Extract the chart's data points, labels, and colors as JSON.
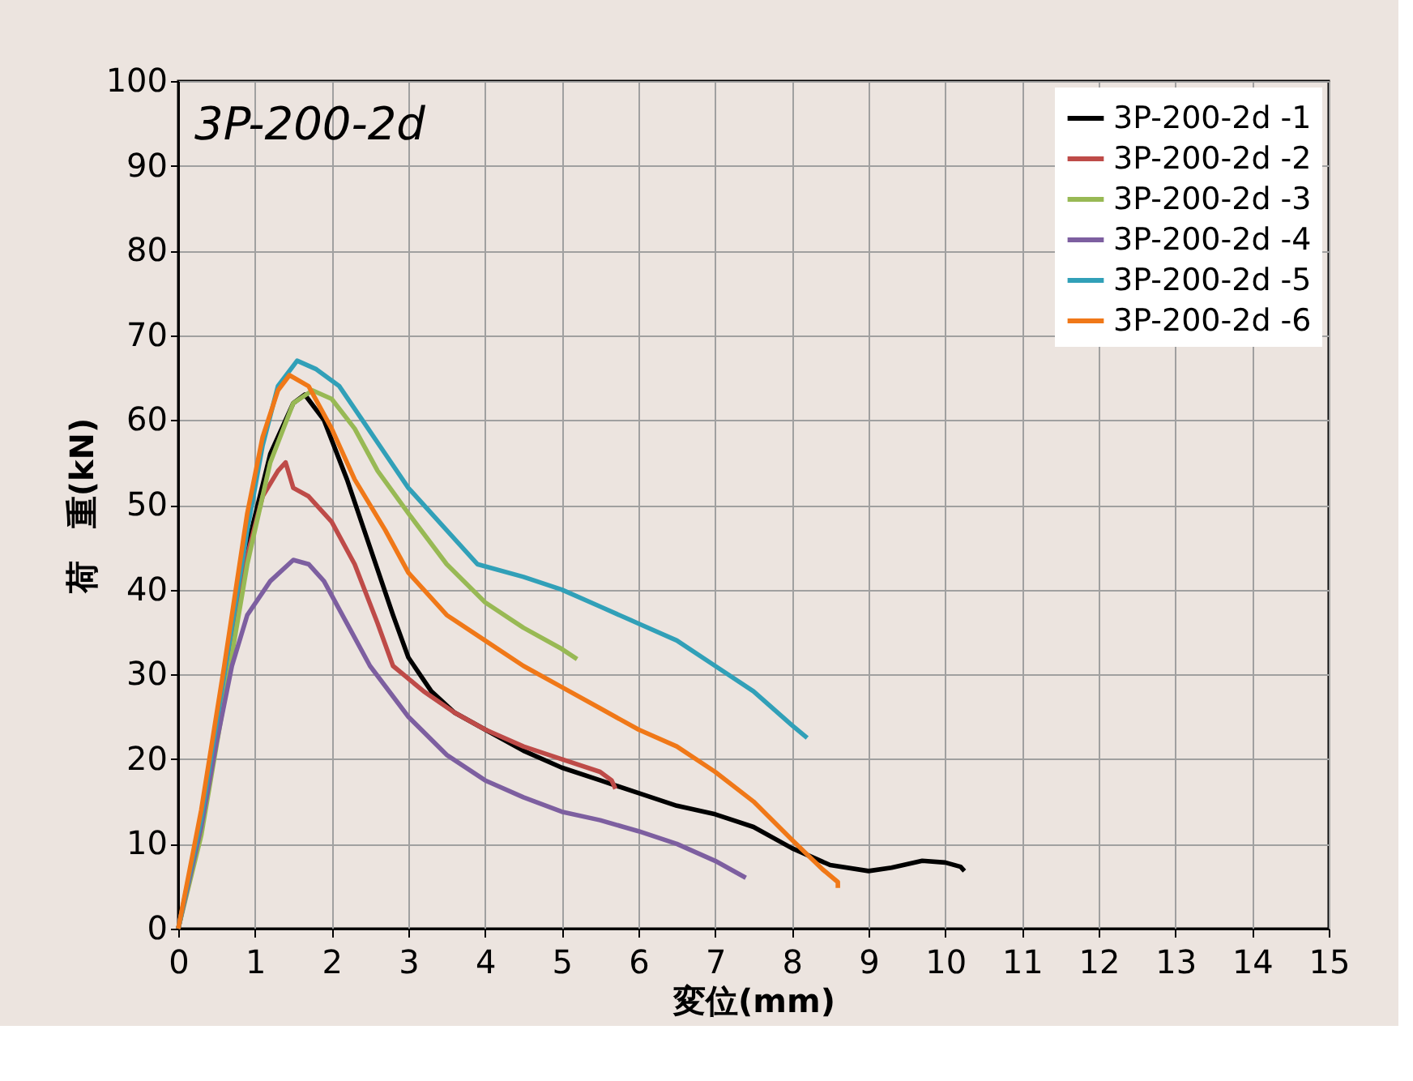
{
  "chart_data": {
    "type": "line",
    "xlabel": "変位(mm)",
    "ylabel": "荷　重(kN)",
    "annotations": [
      "3P-200-2d"
    ],
    "xlim": [
      0,
      15
    ],
    "xticks": [
      0,
      1,
      2,
      3,
      4,
      5,
      6,
      7,
      8,
      9,
      10,
      11,
      12,
      13,
      14,
      15
    ],
    "ylim": [
      0,
      100
    ],
    "yticks": [
      0,
      10,
      20,
      30,
      40,
      50,
      60,
      70,
      80,
      90,
      100
    ],
    "grid": true,
    "legend": "top right",
    "marker": "none",
    "line_style": "solid",
    "series": [
      {
        "name": "3P-200-2d -1",
        "color": "#000000",
        "x": [
          0,
          0.3,
          0.6,
          0.9,
          1.2,
          1.5,
          1.65,
          1.9,
          2.2,
          2.5,
          2.8,
          3.0,
          3.3,
          3.6,
          4,
          4.5,
          5,
          5.5,
          6,
          6.5,
          7,
          7.5,
          8,
          8.5,
          9,
          9.3,
          9.7,
          10,
          10.2,
          10.25
        ],
        "values": [
          0,
          12,
          28,
          45,
          56,
          62,
          63,
          60,
          53,
          45,
          37,
          32,
          28,
          25.5,
          23.5,
          21,
          19,
          17.5,
          16,
          14.5,
          13.5,
          12,
          9.5,
          7.5,
          6.8,
          7.2,
          8,
          7.8,
          7.3,
          6.8
        ]
      },
      {
        "name": "3P-200-2d -2",
        "color": "#be4b48",
        "x": [
          0,
          0.3,
          0.6,
          0.9,
          1.1,
          1.3,
          1.4,
          1.5,
          1.7,
          2,
          2.3,
          2.6,
          2.8,
          3.2,
          3.6,
          4,
          4.5,
          5,
          5.5,
          5.65,
          5.7
        ],
        "values": [
          0,
          13,
          30,
          44,
          51,
          54,
          55,
          52,
          51,
          48,
          43,
          36,
          31,
          28,
          25.5,
          23.5,
          21.5,
          20,
          18.5,
          17.5,
          16.5
        ]
      },
      {
        "name": "3P-200-2d -3",
        "color": "#98b954",
        "x": [
          0,
          0.3,
          0.6,
          0.9,
          1.2,
          1.5,
          1.75,
          2,
          2.3,
          2.6,
          3,
          3.5,
          4,
          4.5,
          5,
          5.2
        ],
        "values": [
          0,
          11,
          27,
          43,
          55,
          62,
          63.5,
          62.5,
          59,
          54,
          49,
          43,
          38.5,
          35.5,
          33,
          31.8
        ]
      },
      {
        "name": "3P-200-2d -4",
        "color": "#7d5fa0",
        "x": [
          0,
          0.3,
          0.5,
          0.7,
          0.9,
          1.2,
          1.5,
          1.7,
          1.9,
          2.2,
          2.5,
          3,
          3.5,
          4,
          4.5,
          5,
          5.5,
          6,
          6.5,
          7,
          7.4
        ],
        "values": [
          0,
          12,
          22,
          31,
          37,
          41,
          43.5,
          43,
          41,
          36,
          31,
          25,
          20.5,
          17.5,
          15.5,
          13.8,
          12.8,
          11.5,
          10,
          8,
          6
        ]
      },
      {
        "name": "3P-200-2d -5",
        "color": "#31a0b8",
        "x": [
          0,
          0.3,
          0.6,
          0.9,
          1.1,
          1.3,
          1.55,
          1.8,
          2.1,
          2.4,
          2.7,
          3,
          3.5,
          3.9,
          4.5,
          5,
          5.5,
          6,
          6.5,
          7,
          7.5,
          8,
          8.2
        ],
        "values": [
          0,
          13,
          30,
          47,
          57,
          64,
          67,
          66,
          64,
          60,
          56,
          52,
          47,
          43,
          41.5,
          40,
          38,
          36,
          34,
          31,
          28,
          24,
          22.5
        ]
      },
      {
        "name": "3P-200-2d -6",
        "color": "#f07818",
        "x": [
          0,
          0.3,
          0.6,
          0.9,
          1.1,
          1.3,
          1.45,
          1.7,
          2,
          2.3,
          2.7,
          3,
          3.5,
          4,
          4.5,
          5,
          5.5,
          6,
          6.5,
          7,
          7.5,
          8,
          8.4,
          8.6,
          8.6
        ],
        "values": [
          0,
          14,
          31,
          49,
          58,
          63.5,
          65.3,
          64,
          59,
          53,
          47,
          42,
          37,
          34,
          31,
          28.5,
          26,
          23.5,
          21.5,
          18.5,
          15,
          10.5,
          7,
          5.5,
          4.8
        ]
      }
    ]
  }
}
